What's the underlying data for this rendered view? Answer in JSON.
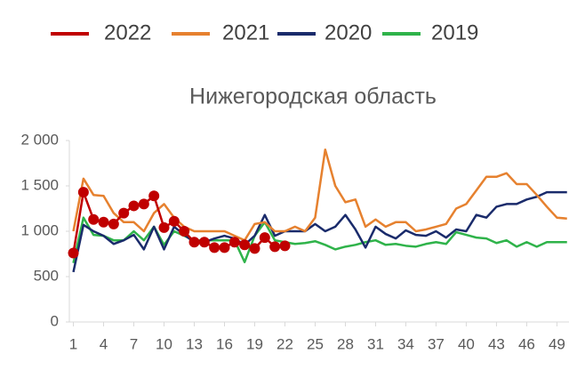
{
  "chart_data": {
    "type": "line",
    "title": "Нижегородская область",
    "x": [
      1,
      2,
      3,
      4,
      5,
      6,
      7,
      8,
      9,
      10,
      11,
      12,
      13,
      14,
      15,
      16,
      17,
      18,
      19,
      20,
      21,
      22,
      23,
      24,
      25,
      26,
      27,
      28,
      29,
      30,
      31,
      32,
      33,
      34,
      35,
      36,
      37,
      38,
      39,
      40,
      41,
      42,
      43,
      44,
      45,
      46,
      47,
      48,
      49,
      50
    ],
    "xlim": [
      0.6,
      50.2
    ],
    "xticks": [
      1,
      4,
      7,
      10,
      13,
      16,
      19,
      22,
      25,
      28,
      31,
      34,
      37,
      40,
      43,
      46,
      49
    ],
    "ylim": [
      0,
      2000
    ],
    "yticks": [
      0,
      500,
      {
        "value": 1000,
        "label": "1 000"
      },
      {
        "value": 1500,
        "label": "1 500"
      },
      {
        "value": 2000,
        "label": "2 000"
      }
    ],
    "series": [
      {
        "name": "2022",
        "color": "#c00000",
        "marker": true,
        "values": [
          760,
          1430,
          1130,
          1100,
          1080,
          1200,
          1280,
          1300,
          1390,
          1040,
          1110,
          1000,
          880,
          880,
          820,
          820,
          880,
          850,
          810,
          930,
          830,
          840,
          null,
          null,
          null,
          null,
          null,
          null,
          null,
          null,
          null,
          null,
          null,
          null,
          null,
          null,
          null,
          null,
          null,
          null,
          null,
          null,
          null,
          null,
          null,
          null,
          null,
          null,
          null,
          null
        ]
      },
      {
        "name": "2021",
        "color": "#e6812f",
        "values": [
          1000,
          1580,
          1400,
          1390,
          1200,
          1100,
          1100,
          1000,
          1200,
          1300,
          1150,
          1050,
          1000,
          1000,
          1000,
          1000,
          950,
          900,
          1080,
          1100,
          1000,
          1000,
          1050,
          1000,
          1150,
          1900,
          1500,
          1320,
          1350,
          1050,
          1130,
          1050,
          1100,
          1100,
          1000,
          1020,
          1050,
          1080,
          1250,
          1300,
          1450,
          1600,
          1600,
          1640,
          1520,
          1520,
          1400,
          1270,
          1150,
          1140
        ]
      },
      {
        "name": "2020",
        "color": "#1a2b6b",
        "values": [
          550,
          1070,
          1000,
          950,
          860,
          900,
          960,
          800,
          1050,
          800,
          1050,
          960,
          880,
          880,
          920,
          950,
          920,
          850,
          950,
          1180,
          950,
          1000,
          1000,
          1000,
          1080,
          1000,
          1050,
          1180,
          1020,
          820,
          1050,
          970,
          920,
          1010,
          960,
          950,
          1000,
          930,
          1020,
          1000,
          1180,
          1150,
          1270,
          1300,
          1300,
          1350,
          1380,
          1430,
          1430,
          1430
        ]
      },
      {
        "name": "2019",
        "color": "#2fb34a",
        "values": [
          650,
          1150,
          960,
          950,
          900,
          900,
          1000,
          900,
          1050,
          850,
          1000,
          950,
          900,
          900,
          900,
          900,
          900,
          660,
          950,
          1100,
          900,
          880,
          860,
          870,
          890,
          850,
          800,
          830,
          850,
          880,
          900,
          850,
          860,
          840,
          830,
          860,
          880,
          860,
          990,
          960,
          930,
          920,
          870,
          900,
          830,
          880,
          830,
          880,
          880,
          880
        ]
      }
    ]
  }
}
